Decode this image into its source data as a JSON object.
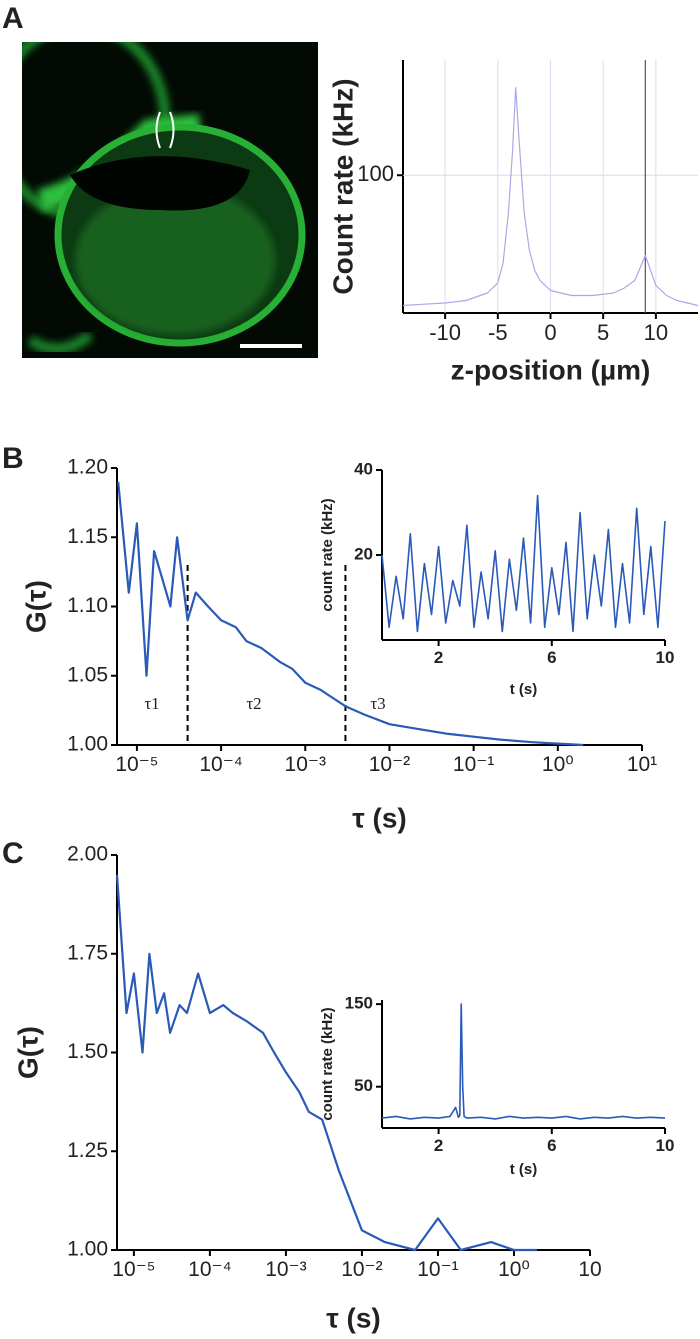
{
  "chart_data": [
    {
      "type": "line",
      "panel_label": "A",
      "x_label": "z-position (µm)",
      "y_label": "Count rate (kHz)",
      "x": [
        -14,
        -12,
        -10,
        -8,
        -6,
        -5,
        -4.5,
        -4,
        -3.6,
        -3.3,
        -3,
        -2.5,
        -2,
        -1.5,
        -1,
        0,
        2,
        4,
        6,
        7,
        8,
        8.5,
        9,
        9.5,
        10,
        11,
        12,
        14
      ],
      "values": [
        48,
        48.5,
        49,
        50,
        53,
        57,
        65,
        85,
        110,
        135,
        115,
        85,
        70,
        62,
        58,
        54,
        52,
        52,
        53,
        55,
        58,
        63,
        68,
        62,
        56,
        52,
        50,
        48
      ],
      "color": "#a9a9e8",
      "xlim": [
        -14,
        14
      ],
      "ylim": [
        45,
        146
      ],
      "xticks": [
        -10,
        -5,
        0,
        5,
        10
      ],
      "yticks": [
        100
      ],
      "grid": true,
      "vlines": [
        9
      ],
      "vline_color": "#555555",
      "vline_dashed": false
    },
    {
      "type": "line",
      "panel_label": "B",
      "x_label": "τ (s)",
      "y_label": "G(τ)",
      "xscale": "log",
      "x": [
        6e-06,
        8e-06,
        1e-05,
        1.3e-05,
        1.6e-05,
        2e-05,
        2.5e-05,
        3e-05,
        4e-05,
        5e-05,
        7e-05,
        0.0001,
        0.00015,
        0.0002,
        0.0003,
        0.0005,
        0.0007,
        0.001,
        0.0015,
        0.002,
        0.003,
        0.005,
        0.01,
        0.02,
        0.05,
        0.1,
        0.2,
        0.5,
        1,
        2
      ],
      "values": [
        1.19,
        1.11,
        1.16,
        1.05,
        1.14,
        1.12,
        1.1,
        1.15,
        1.09,
        1.11,
        1.1,
        1.09,
        1.085,
        1.075,
        1.07,
        1.06,
        1.055,
        1.045,
        1.04,
        1.035,
        1.028,
        1.022,
        1.015,
        1.012,
        1.008,
        1.006,
        1.004,
        1.002,
        1.001,
        1.0
      ],
      "color": "#2a5ab8",
      "xlim": [
        5.8e-06,
        10
      ],
      "ylim": [
        1.0,
        1.2
      ],
      "xticks": [
        {
          "value": 1e-05,
          "label": "10⁻⁵"
        },
        {
          "value": 0.0001,
          "label": "10⁻⁴"
        },
        {
          "value": 0.001,
          "label": "10⁻³"
        },
        {
          "value": 0.01,
          "label": "10⁻²"
        },
        {
          "value": 0.1,
          "label": "10⁻¹"
        },
        {
          "value": 1,
          "label": "10⁰"
        },
        {
          "value": 10,
          "label": "10¹"
        }
      ],
      "yticks": [
        {
          "value": 1.0,
          "label": "1.00"
        },
        1.05,
        {
          "value": 1.1,
          "label": "1.10"
        },
        1.15,
        {
          "value": 1.2,
          "label": "1.20"
        }
      ],
      "grid": false,
      "vlines": [
        4e-05,
        0.003
      ],
      "vline_color": "#000000",
      "vline_dashed": true,
      "annotations": [
        "τ1",
        "τ2",
        "τ3"
      ]
    },
    {
      "type": "line",
      "x_label": "t (s)",
      "y_label": "count rate (kHz)",
      "x": [
        0,
        0.25,
        0.5,
        0.75,
        1,
        1.25,
        1.5,
        1.75,
        2,
        2.25,
        2.5,
        2.75,
        3,
        3.25,
        3.5,
        3.75,
        4,
        4.25,
        4.5,
        4.75,
        5,
        5.25,
        5.5,
        5.75,
        6,
        6.25,
        6.5,
        6.75,
        7,
        7.25,
        7.5,
        7.75,
        8,
        8.25,
        8.5,
        8.75,
        9,
        9.25,
        9.5,
        9.75,
        10
      ],
      "values": [
        20,
        3,
        15,
        5,
        25,
        2,
        18,
        6,
        22,
        4,
        14,
        8,
        27,
        3,
        16,
        5,
        21,
        2,
        19,
        7,
        24,
        4,
        34,
        3,
        17,
        6,
        23,
        2,
        30,
        5,
        20,
        8,
        26,
        3,
        18,
        4,
        31,
        6,
        22,
        3,
        28
      ],
      "color": "#2a5ab8",
      "xlim": [
        0,
        10
      ],
      "ylim": [
        0,
        40
      ],
      "xticks": [
        2,
        6,
        10
      ],
      "yticks": [
        20,
        40
      ],
      "grid": false
    },
    {
      "type": "line",
      "panel_label": "C",
      "x_label": "τ (s)",
      "y_label": "G(τ)",
      "xscale": "log",
      "x": [
        6e-06,
        8e-06,
        1e-05,
        1.3e-05,
        1.6e-05,
        2e-05,
        2.5e-05,
        3e-05,
        4e-05,
        5e-05,
        7e-05,
        0.0001,
        0.00015,
        0.0002,
        0.0003,
        0.0005,
        0.0007,
        0.001,
        0.0015,
        0.002,
        0.003,
        0.005,
        0.01,
        0.02,
        0.05,
        0.1,
        0.2,
        0.5,
        1,
        2
      ],
      "values": [
        1.95,
        1.6,
        1.7,
        1.5,
        1.75,
        1.6,
        1.65,
        1.55,
        1.62,
        1.6,
        1.7,
        1.6,
        1.62,
        1.6,
        1.58,
        1.55,
        1.5,
        1.45,
        1.4,
        1.35,
        1.33,
        1.2,
        1.05,
        1.02,
        1.0,
        1.08,
        1.0,
        1.02,
        1.0,
        1.0
      ],
      "color": "#2a5ab8",
      "xlim": [
        6e-06,
        10
      ],
      "ylim": [
        1.0,
        2.0
      ],
      "xticks": [
        {
          "value": 1e-05,
          "label": "10⁻⁵"
        },
        {
          "value": 0.0001,
          "label": "10⁻⁴"
        },
        {
          "value": 0.001,
          "label": "10⁻³"
        },
        {
          "value": 0.01,
          "label": "10⁻²"
        },
        {
          "value": 0.1,
          "label": "10⁻¹"
        },
        {
          "value": 1,
          "label": "10⁰"
        },
        10
      ],
      "yticks": [
        {
          "value": 1.0,
          "label": "1.00"
        },
        1.25,
        {
          "value": 1.5,
          "label": "1.50"
        },
        1.75,
        {
          "value": 2.0,
          "label": "2.00"
        }
      ],
      "grid": false
    },
    {
      "type": "line",
      "x_label": "t (s)",
      "y_label": "count rate (kHz)",
      "x": [
        0,
        0.5,
        1,
        1.5,
        2,
        2.4,
        2.6,
        2.7,
        2.75,
        2.8,
        2.85,
        2.9,
        3,
        3.5,
        4,
        4.5,
        5,
        5.5,
        6,
        6.5,
        7,
        7.5,
        8,
        8.5,
        9,
        9.5,
        10
      ],
      "values": [
        12,
        14,
        11,
        13,
        12,
        14,
        25,
        13,
        15,
        150,
        50,
        14,
        12,
        13,
        11,
        14,
        12,
        13,
        12,
        14,
        11,
        13,
        12,
        14,
        12,
        13,
        12
      ],
      "color": "#2a5ab8",
      "xlim": [
        0,
        10
      ],
      "ylim": [
        0,
        155
      ],
      "xticks": [
        2,
        6,
        10
      ],
      "yticks": [
        50,
        150
      ],
      "grid": false
    }
  ]
}
